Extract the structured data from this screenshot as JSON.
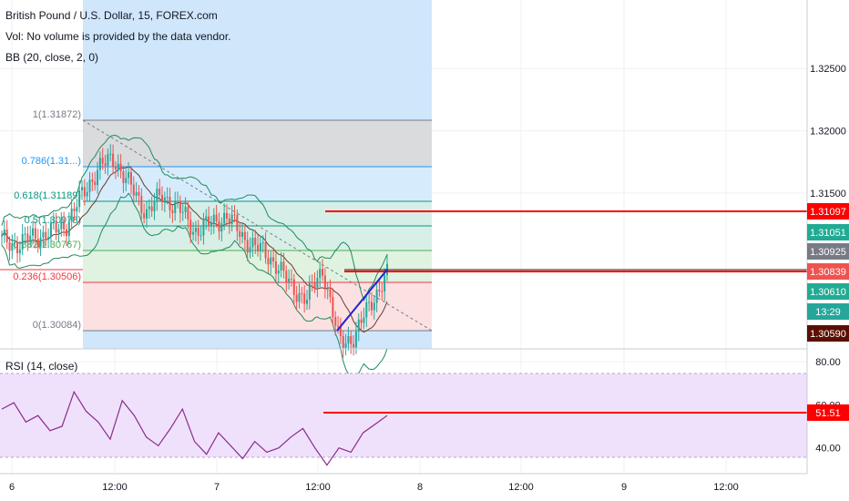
{
  "header": {
    "symbol_line": "British Pound / U.S. Dollar, 15, FOREX.com",
    "volume_line": "Vol: No volume is provided by the data vendor.",
    "bb_line": "BB (20, close, 2, 0)",
    "rsi_line": "RSI (14, close)"
  },
  "colors": {
    "grid": "#eef0f3",
    "highlight": "#cfe6fb",
    "bb": "#208a5c",
    "candle_up": "#26a69a",
    "candle_down": "#ef5350",
    "red_line": "#ff0000",
    "trend_line": "#1f22d6",
    "rsi_line": "#8b2b8b",
    "rsi_band": "#efe1fb"
  },
  "chart_data": [
    {
      "type": "candlestick",
      "title": "British Pound / U.S. Dollar, 15, FOREX.com",
      "y_axis": {
        "position": "right",
        "ticks": [
          1.325,
          1.32,
          1.315
        ],
        "tick_labels": [
          "1.32500",
          "1.32000",
          "1.31500"
        ],
        "range": [
          1.3025,
          1.3305
        ]
      },
      "x_axis": {
        "ticks": [
          "6",
          "12:00",
          "7",
          "12:00",
          "8",
          "12:00",
          "9",
          "12:00"
        ]
      },
      "fibonacci_retracement": [
        {
          "level": "1",
          "price": "1.31872",
          "label": "1(1.31872)",
          "color": "#787b86"
        },
        {
          "level": "0.786",
          "price": "1.31...",
          "label": "0.786(1.31...)",
          "color": "#2196f3"
        },
        {
          "level": "0.618",
          "price": "1.31189",
          "label": "0.618(1.31189)",
          "color": "#089981"
        },
        {
          "level": "0.5",
          "price": "1.30978",
          "label": "0.5(1.30978)",
          "color": "#089981"
        },
        {
          "level": "0.382",
          "price": "1.30767",
          "label": "0.382(1.30767)",
          "color": "#4caf50"
        },
        {
          "level": "0.236",
          "price": "1.30506",
          "label": "0.236(1.30506)",
          "color": "#f23645"
        },
        {
          "level": "0",
          "price": "1.30084",
          "label": "0(1.30084)",
          "color": "#787b86"
        }
      ],
      "price_badges": [
        {
          "text": "1.31097",
          "bg": "#ff0000"
        },
        {
          "text": "1.31051",
          "bg": "#22ab94"
        },
        {
          "text": "1.30925",
          "bg": "#787b86"
        },
        {
          "text": "1.30839",
          "bg": "#ef5350"
        },
        {
          "text": "1.30610",
          "bg": "#22ab94"
        },
        {
          "text": "13:29",
          "bg": "#26a69a"
        },
        {
          "text": "1.30590",
          "bg": "#5b0f00"
        }
      ],
      "series": [
        {
          "name": "close",
          "approx_values": [
            1.3112,
            1.3109,
            1.3115,
            1.3118,
            1.3125,
            1.3148,
            1.317,
            1.3178,
            1.3155,
            1.3135,
            1.3148,
            1.3138,
            1.312,
            1.3125,
            1.3132,
            1.3115,
            1.3105,
            1.3095,
            1.3075,
            1.3065,
            1.309,
            1.303,
            1.3035,
            1.3063,
            1.3084
          ]
        }
      ]
    },
    {
      "type": "line",
      "title": "RSI (14, close)",
      "y_axis": {
        "position": "right",
        "ticks": [
          80,
          60,
          40
        ],
        "tick_labels": [
          "80.00",
          "60.00",
          "40.00"
        ],
        "range": [
          28,
          86
        ]
      },
      "bands": {
        "upper": 70,
        "lower": 30
      },
      "marker_value_label": "51.51",
      "series": [
        {
          "name": "RSI",
          "values": [
            58,
            61,
            52,
            55,
            48,
            50,
            66,
            57,
            52,
            44,
            62,
            55,
            45,
            41,
            49,
            58,
            43,
            37,
            47,
            41,
            35,
            43,
            38,
            40,
            45,
            49,
            40,
            32,
            40,
            38,
            47,
            51,
            55
          ]
        }
      ]
    }
  ]
}
